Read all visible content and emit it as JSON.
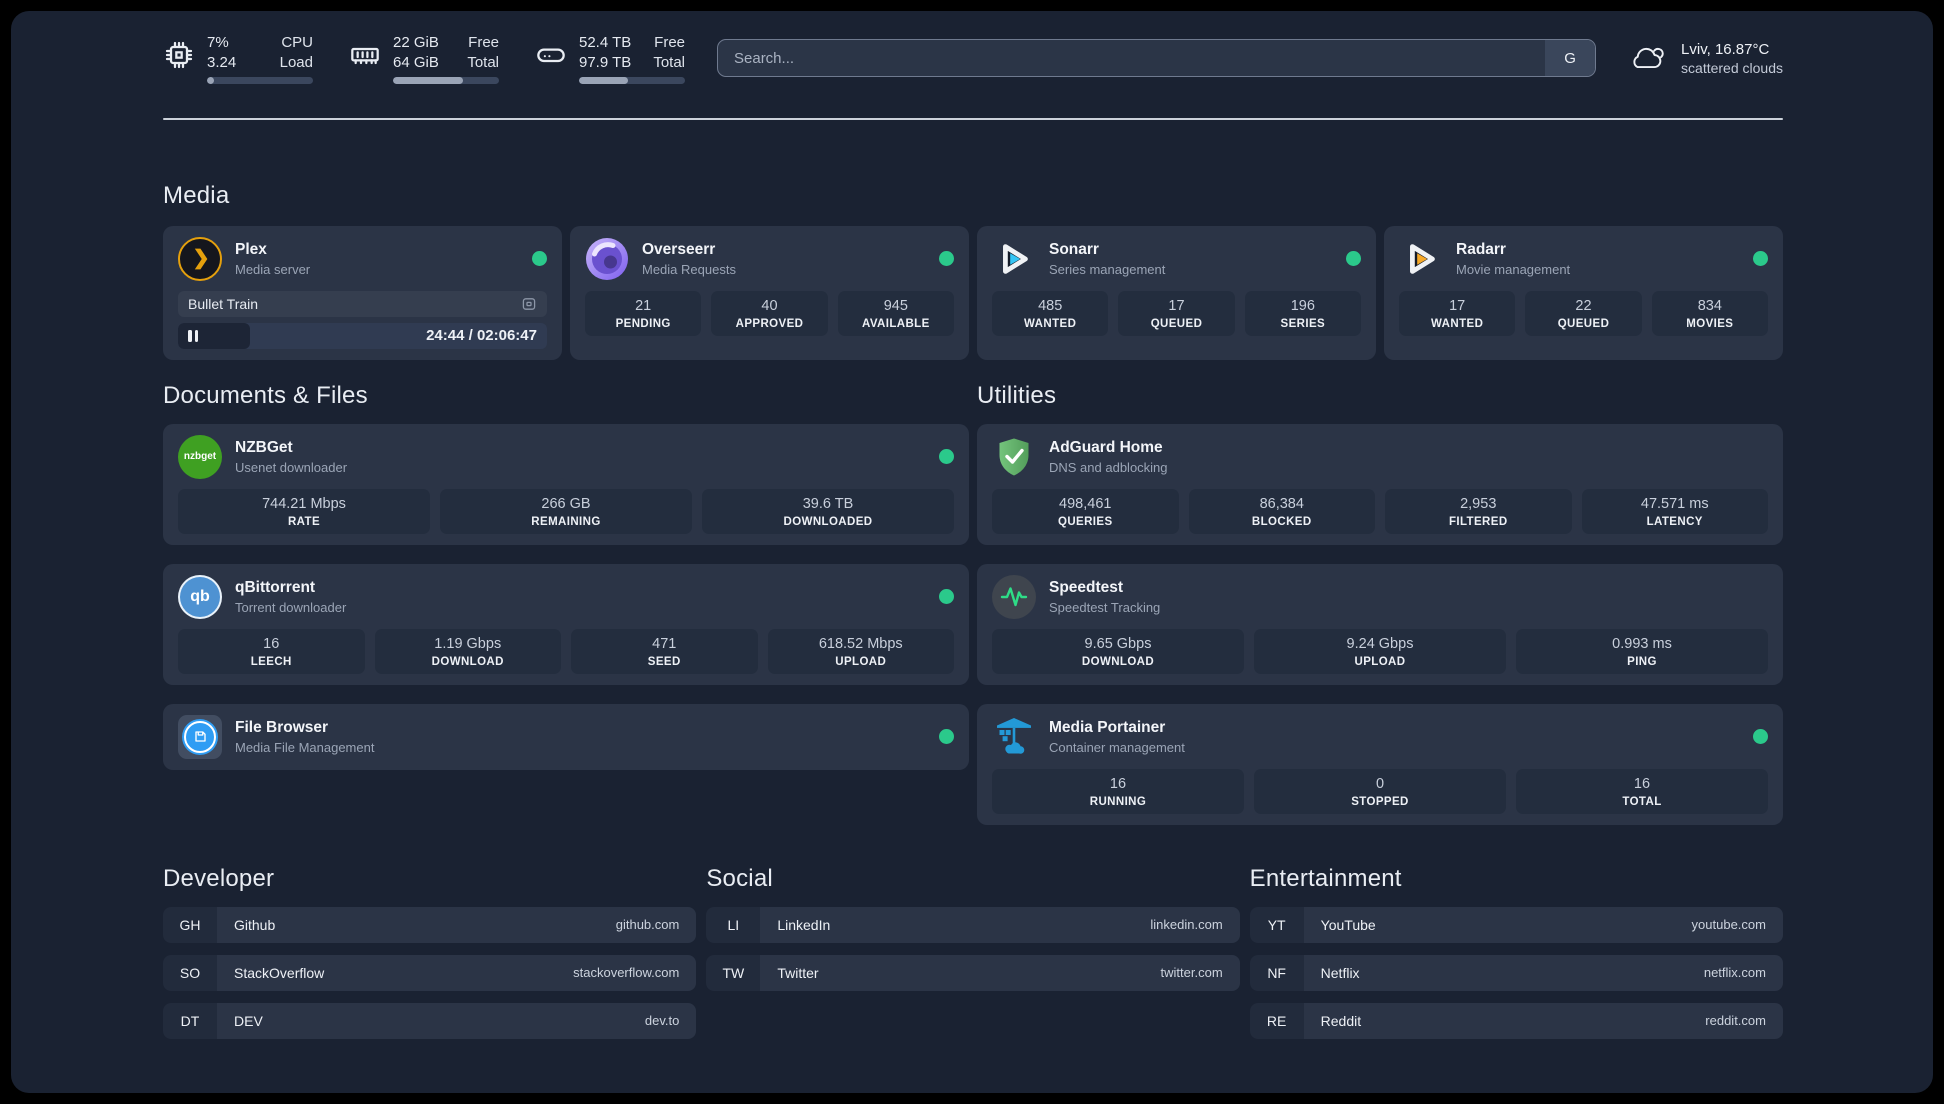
{
  "colors": {
    "page_bg": "#1a2232",
    "card_bg": "#2b3446",
    "stat_bg": "#232d3e",
    "status_online": "#2bc98b",
    "plex_amber": "#e5a00d",
    "sonarr_blue": "#35c5f4",
    "radarr_orange": "#f7a928",
    "portainer_blue": "#2399d6",
    "adguard_green": "#5fb768",
    "speedtest_pulse": "#2edc87"
  },
  "icons": [
    "cpu-icon",
    "memory-icon",
    "disk-icon",
    "search-provider-g",
    "cloud-icon",
    "plex-icon",
    "overseerr-icon",
    "sonarr-icon",
    "radarr-icon",
    "nzbget-icon",
    "qbittorrent-icon",
    "filebrowser-icon",
    "adguard-icon",
    "speedtest-icon",
    "portainer-icon",
    "pause-icon",
    "player-device-icon"
  ],
  "topbar": {
    "cpu": {
      "value_top": "7%",
      "value_bottom": "3.24",
      "label_top": "CPU",
      "label_bottom": "Load",
      "progress_pct": 7
    },
    "memory": {
      "value_top": "22 GiB",
      "value_bottom": "64 GiB",
      "label_top": "Free",
      "label_bottom": "Total",
      "progress_pct": 66
    },
    "disk": {
      "value_top": "52.4 TB",
      "value_bottom": "97.9 TB",
      "label_top": "Free",
      "label_bottom": "Total",
      "progress_pct": 46
    },
    "search": {
      "placeholder": "Search...",
      "provider_button": "G",
      "value": ""
    },
    "weather": {
      "location_temp": "Lviv, 16.87°C",
      "condition": "scattered clouds"
    }
  },
  "sections": {
    "media": {
      "title": "Media",
      "plex": {
        "name": "Plex",
        "description": "Media server",
        "player": {
          "title": "Bullet Train",
          "time": "24:44 / 02:06:47",
          "progress_pct": 19.5
        }
      },
      "overseerr": {
        "name": "Overseerr",
        "description": "Media Requests",
        "stats": [
          {
            "value": "21",
            "label": "PENDING"
          },
          {
            "value": "40",
            "label": "APPROVED"
          },
          {
            "value": "945",
            "label": "AVAILABLE"
          }
        ]
      },
      "sonarr": {
        "name": "Sonarr",
        "description": "Series management",
        "stats": [
          {
            "value": "485",
            "label": "WANTED"
          },
          {
            "value": "17",
            "label": "QUEUED"
          },
          {
            "value": "196",
            "label": "SERIES"
          }
        ]
      },
      "radarr": {
        "name": "Radarr",
        "description": "Movie management",
        "stats": [
          {
            "value": "17",
            "label": "WANTED"
          },
          {
            "value": "22",
            "label": "QUEUED"
          },
          {
            "value": "834",
            "label": "MOVIES"
          }
        ]
      }
    },
    "documents": {
      "title": "Documents & Files",
      "nzbget": {
        "name": "NZBGet",
        "description": "Usenet downloader",
        "logo_text": "nzbget",
        "stats": [
          {
            "value": "744.21 Mbps",
            "label": "RATE"
          },
          {
            "value": "266 GB",
            "label": "REMAINING"
          },
          {
            "value": "39.6 TB",
            "label": "DOWNLOADED"
          }
        ]
      },
      "qbittorrent": {
        "name": "qBittorrent",
        "description": "Torrent downloader",
        "logo_text": "qb",
        "stats": [
          {
            "value": "16",
            "label": "LEECH"
          },
          {
            "value": "1.19 Gbps",
            "label": "DOWNLOAD"
          },
          {
            "value": "471",
            "label": "SEED"
          },
          {
            "value": "618.52 Mbps",
            "label": "UPLOAD"
          }
        ]
      },
      "filebrowser": {
        "name": "File Browser",
        "description": "Media File Management"
      }
    },
    "utilities": {
      "title": "Utilities",
      "adguard": {
        "name": "AdGuard Home",
        "description": "DNS and adblocking",
        "stats": [
          {
            "value": "498,461",
            "label": "QUERIES"
          },
          {
            "value": "86,384",
            "label": "BLOCKED"
          },
          {
            "value": "2,953",
            "label": "FILTERED"
          },
          {
            "value": "47.571 ms",
            "label": "LATENCY"
          }
        ]
      },
      "speedtest": {
        "name": "Speedtest",
        "description": "Speedtest Tracking",
        "stats": [
          {
            "value": "9.65 Gbps",
            "label": "DOWNLOAD"
          },
          {
            "value": "9.24 Gbps",
            "label": "UPLOAD"
          },
          {
            "value": "0.993 ms",
            "label": "PING"
          }
        ]
      },
      "portainer": {
        "name": "Media Portainer",
        "description": "Container management",
        "stats": [
          {
            "value": "16",
            "label": "RUNNING"
          },
          {
            "value": "0",
            "label": "STOPPED"
          },
          {
            "value": "16",
            "label": "TOTAL"
          }
        ]
      }
    }
  },
  "bookmarks": {
    "developer": {
      "title": "Developer",
      "items": [
        {
          "abbr": "GH",
          "name": "Github",
          "url": "github.com"
        },
        {
          "abbr": "SO",
          "name": "StackOverflow",
          "url": "stackoverflow.com"
        },
        {
          "abbr": "DT",
          "name": "DEV",
          "url": "dev.to"
        }
      ]
    },
    "social": {
      "title": "Social",
      "items": [
        {
          "abbr": "LI",
          "name": "LinkedIn",
          "url": "linkedin.com"
        },
        {
          "abbr": "TW",
          "name": "Twitter",
          "url": "twitter.com"
        }
      ]
    },
    "entertainment": {
      "title": "Entertainment",
      "items": [
        {
          "abbr": "YT",
          "name": "YouTube",
          "url": "youtube.com"
        },
        {
          "abbr": "NF",
          "name": "Netflix",
          "url": "netflix.com"
        },
        {
          "abbr": "RE",
          "name": "Reddit",
          "url": "reddit.com"
        }
      ]
    }
  }
}
